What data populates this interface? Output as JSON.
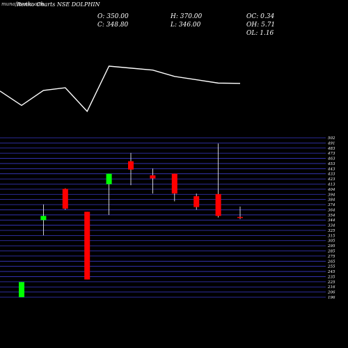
{
  "header": {
    "watermark": "munafasutra.com",
    "title": "Renko Charts NSE DOLPHIN",
    "open": "O: 350.00",
    "high": "H: 370.00",
    "oc": "OC: 0.34",
    "close": "C: 348.80",
    "low": "L: 346.00",
    "oh": "OH: 5.71",
    "ol": "OL: 1.16"
  },
  "chart_data": {
    "type": "candlestick",
    "y_axis_ticks": [
      "502",
      "491",
      "483",
      "473",
      "463",
      "453",
      "443",
      "433",
      "423",
      "413",
      "404",
      "394",
      "384",
      "374",
      "364",
      "354",
      "344",
      "334",
      "325",
      "315",
      "305",
      "295",
      "285",
      "275",
      "265",
      "255",
      "245",
      "235",
      "225",
      "216",
      "206",
      "196"
    ],
    "ylim": [
      196,
      502
    ],
    "candles": [
      {
        "open": 196,
        "close": 225,
        "high": 225,
        "low": 196,
        "color": "green"
      },
      {
        "open": 344,
        "close": 352,
        "high": 374,
        "low": 315,
        "color": "green"
      },
      {
        "open": 366,
        "close": 404,
        "high": 405,
        "low": 364,
        "color": "red"
      },
      {
        "open": 360,
        "close": 230,
        "high": 360,
        "low": 230,
        "color": "red"
      },
      {
        "open": 413,
        "close": 433,
        "high": 433,
        "low": 354,
        "color": "green"
      },
      {
        "open": 441,
        "close": 457,
        "high": 473,
        "low": 411,
        "color": "red"
      },
      {
        "open": 424,
        "close": 430,
        "high": 443,
        "low": 395,
        "color": "red"
      },
      {
        "open": 395,
        "close": 433,
        "high": 433,
        "low": 380,
        "color": "red"
      },
      {
        "open": 369,
        "close": 390,
        "high": 395,
        "low": 364,
        "color": "red"
      },
      {
        "open": 352,
        "close": 394,
        "high": 491,
        "low": 349,
        "color": "red"
      },
      {
        "open": 350,
        "close": 348.8,
        "high": 370,
        "low": 346,
        "color": "red"
      }
    ],
    "overlay_line": [
      380,
      337,
      382,
      390,
      319,
      455,
      449,
      443,
      424,
      414,
      404,
      403
    ],
    "colors": {
      "up": "#00ff00",
      "down": "#ff0000",
      "grid": "#3a3ac8",
      "line": "#ffffff",
      "text": "#ffffff"
    }
  }
}
